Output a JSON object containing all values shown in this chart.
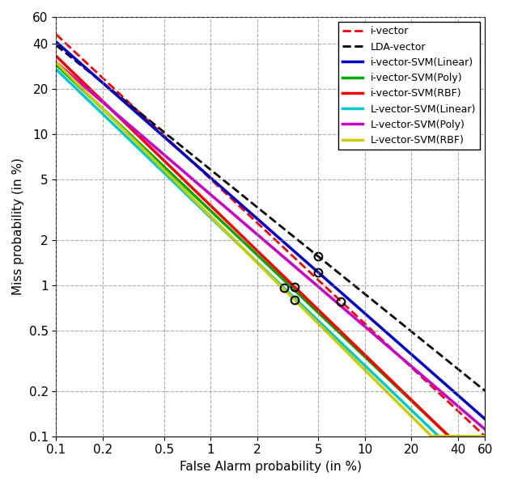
{
  "title": "",
  "xlabel": "False Alarm probability (in %)",
  "ylabel": "Miss probability (in %)",
  "xlim": [
    0.1,
    60
  ],
  "ylim": [
    0.1,
    60
  ],
  "xticks": [
    0.1,
    0.2,
    0.5,
    1,
    2,
    5,
    10,
    20,
    40,
    60
  ],
  "yticks": [
    0.1,
    0.2,
    0.5,
    1,
    2,
    5,
    10,
    20,
    40,
    60
  ],
  "xtick_labels": [
    "0.1",
    "0.2",
    "0.5",
    "1",
    "2",
    "5",
    "10",
    "20",
    "40",
    "60"
  ],
  "ytick_labels": [
    "0.1",
    "0.2",
    "0.5",
    "1",
    "2",
    "5",
    "10",
    "20",
    "40",
    "60"
  ],
  "legend_labels": [
    "i-vector",
    "LDA-vector",
    "i-vector-SVM(Linear)",
    "i-vector-SVM(Poly)",
    "i-vector-SVM(RBF)",
    "L-vector-SVM(Linear)",
    "L-vector-SVM(Poly)",
    "L-vector-SVM(RBF)"
  ],
  "line_colors": [
    "#ff0000",
    "#000000",
    "#0000ff",
    "#00aa00",
    "#ff0000",
    "#00cccc",
    "#cc00cc",
    "#cccc00"
  ],
  "line_styles": [
    "--",
    "--",
    "-",
    "-",
    "-",
    "-",
    "-",
    "-"
  ],
  "line_widths": [
    2.0,
    2.0,
    2.5,
    2.5,
    2.5,
    2.5,
    2.5,
    2.5
  ],
  "background_color": "#ffffff",
  "grid_color": "#888888",
  "font_size": 11
}
